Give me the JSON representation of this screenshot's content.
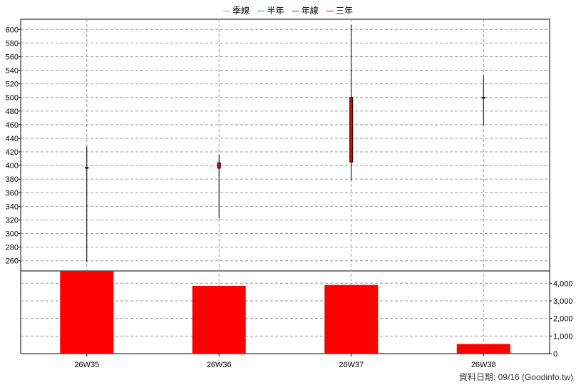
{
  "legend": [
    {
      "label": "季線",
      "color": "#ff8000"
    },
    {
      "label": "半年",
      "color": "#00c000"
    },
    {
      "label": "年線",
      "color": "#0050ff"
    },
    {
      "label": "三年",
      "color": "#ff0000"
    }
  ],
  "source_note": "資料日期: 09/16  (Goodinfo.tw)",
  "chart_data": [
    {
      "type": "candlestick",
      "categories": [
        "26W35",
        "26W36",
        "26W37",
        "26W38"
      ],
      "candles": [
        {
          "open": 397,
          "close": 396,
          "high": 428,
          "low": 258
        },
        {
          "open": 396,
          "close": 404,
          "high": 416,
          "low": 322
        },
        {
          "open": 405,
          "close": 500,
          "high": 607,
          "low": 378
        },
        {
          "open": 499,
          "close": 500,
          "high": 532,
          "low": 459
        }
      ],
      "ylim": [
        245,
        615
      ],
      "yticks": [
        260,
        280,
        300,
        320,
        340,
        360,
        380,
        400,
        420,
        440,
        460,
        480,
        500,
        520,
        540,
        560,
        580,
        600
      ],
      "up_color": "#ff0000",
      "down_color": "#008000",
      "grid": true
    },
    {
      "type": "bar",
      "categories": [
        "26W35",
        "26W36",
        "26W37",
        "26W38"
      ],
      "values": [
        4700,
        3850,
        3900,
        550
      ],
      "ylim": [
        0,
        4700
      ],
      "yticks": [
        0,
        1000,
        2000,
        3000,
        4000
      ],
      "ytick_labels": [
        "0",
        "1,000",
        "2,000",
        "3,000",
        "4,000"
      ],
      "bar_color": "#ff0000",
      "grid": true
    }
  ]
}
